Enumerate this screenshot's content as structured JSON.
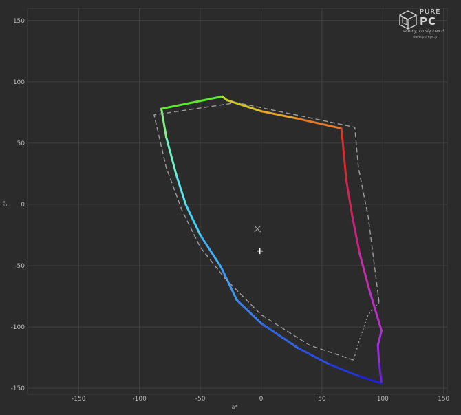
{
  "logo": {
    "brand_top": "PURE",
    "brand_bottom": "PC",
    "tagline": "wiemy, co się kręci!",
    "url": "www.purepc.pl"
  },
  "chart_data": {
    "type": "scatter",
    "title": "",
    "xlabel": "a*",
    "ylabel": "b*",
    "xlim": [
      -192,
      153
    ],
    "ylim": [
      -155,
      160
    ],
    "xticks": [
      -150,
      -100,
      -50,
      0,
      50,
      100,
      150
    ],
    "yticks": [
      150,
      100,
      50,
      0,
      -50,
      -100,
      -150
    ],
    "grid": true,
    "series": [
      {
        "style": "solid gradient hue outline",
        "points": [
          {
            "x": 99,
            "y": -146,
            "color": "#1d22d4"
          },
          {
            "x": 80,
            "y": -140,
            "color": "#2436d8"
          },
          {
            "x": 55,
            "y": -130,
            "color": "#2c4ee0"
          },
          {
            "x": 30,
            "y": -117,
            "color": "#3264e8"
          },
          {
            "x": 0,
            "y": -97,
            "color": "#3a7fef"
          },
          {
            "x": -20,
            "y": -78,
            "color": "#3f98f2"
          },
          {
            "x": -33,
            "y": -51,
            "color": "#42aef4"
          },
          {
            "x": -50,
            "y": -25,
            "color": "#49d0f3"
          },
          {
            "x": -62,
            "y": 0,
            "color": "#5ae6ea"
          },
          {
            "x": -70,
            "y": 25,
            "color": "#6cf2c6"
          },
          {
            "x": -78,
            "y": 55,
            "color": "#84ef80"
          },
          {
            "x": -82,
            "y": 78,
            "color": "#5ce82e"
          },
          {
            "x": -32,
            "y": 88,
            "color": "#b6dd2e"
          },
          {
            "x": -28,
            "y": 85,
            "color": "#d5c52e"
          },
          {
            "x": 0,
            "y": 76,
            "color": "#e7a32c"
          },
          {
            "x": 30,
            "y": 70,
            "color": "#e4792a"
          },
          {
            "x": 66,
            "y": 62,
            "color": "#e03827"
          },
          {
            "x": 67,
            "y": 52,
            "color": "#db2a2f"
          },
          {
            "x": 70,
            "y": 20,
            "color": "#d12356"
          },
          {
            "x": 75,
            "y": -10,
            "color": "#c8247f"
          },
          {
            "x": 81,
            "y": -40,
            "color": "#c42ea6"
          },
          {
            "x": 89,
            "y": -70,
            "color": "#bb30c8"
          },
          {
            "x": 99,
            "y": -103,
            "color": "#a932d6"
          },
          {
            "x": 96,
            "y": -115,
            "color": "#9a2ed8"
          },
          {
            "x": 97,
            "y": -130,
            "color": "#7127d4"
          },
          {
            "x": 99,
            "y": -146,
            "color": "#1d22d4"
          }
        ]
      },
      {
        "style": "dashed grey outline",
        "points": [
          {
            "x": 76,
            "y": -127
          },
          {
            "x": 40,
            "y": -115
          },
          {
            "x": 0,
            "y": -90
          },
          {
            "x": -30,
            "y": -60
          },
          {
            "x": -50,
            "y": -35
          },
          {
            "x": -65,
            "y": -5
          },
          {
            "x": -78,
            "y": 30
          },
          {
            "x": -88,
            "y": 73
          },
          {
            "x": -20,
            "y": 83
          },
          {
            "x": 77,
            "y": 63
          },
          {
            "x": 80,
            "y": 30
          },
          {
            "x": 88,
            "y": -10
          },
          {
            "x": 97,
            "y": -80
          }
        ]
      },
      {
        "style": "dotted grey segment",
        "points": [
          {
            "x": 97,
            "y": -80
          },
          {
            "x": 88,
            "y": -90
          },
          {
            "x": 81,
            "y": -110
          },
          {
            "x": 76,
            "y": -127
          }
        ]
      }
    ],
    "markers": [
      {
        "symbol": "x",
        "x": -3,
        "y": -20,
        "color": "#9a9a9a"
      },
      {
        "symbol": "+",
        "x": -1,
        "y": -38,
        "color": "#ffffff"
      }
    ]
  }
}
